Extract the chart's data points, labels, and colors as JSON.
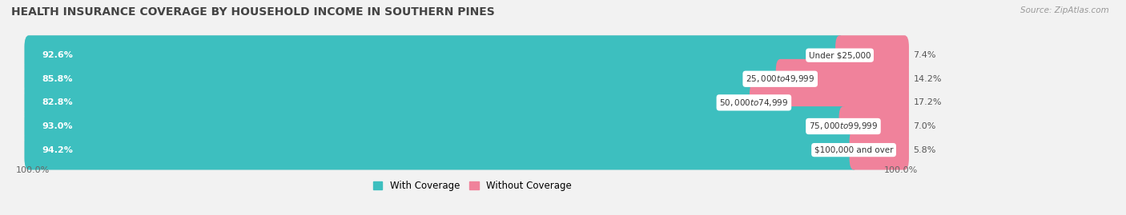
{
  "title": "HEALTH INSURANCE COVERAGE BY HOUSEHOLD INCOME IN SOUTHERN PINES",
  "source": "Source: ZipAtlas.com",
  "categories": [
    "Under $25,000",
    "$25,000 to $49,999",
    "$50,000 to $74,999",
    "$75,000 to $99,999",
    "$100,000 and over"
  ],
  "with_coverage": [
    92.6,
    85.8,
    82.8,
    93.0,
    94.2
  ],
  "without_coverage": [
    7.4,
    14.2,
    17.2,
    7.0,
    5.8
  ],
  "color_coverage": "#3dbfbf",
  "color_no_coverage": "#f0829b",
  "bg_color": "#f2f2f2",
  "bar_bg_color": "#e2e2e2",
  "legend_coverage": "With Coverage",
  "legend_no_coverage": "Without Coverage",
  "x_left_label": "100.0%",
  "x_right_label": "100.0%",
  "title_fontsize": 10,
  "label_fontsize": 8,
  "cat_fontsize": 7.5,
  "bar_height": 0.68
}
